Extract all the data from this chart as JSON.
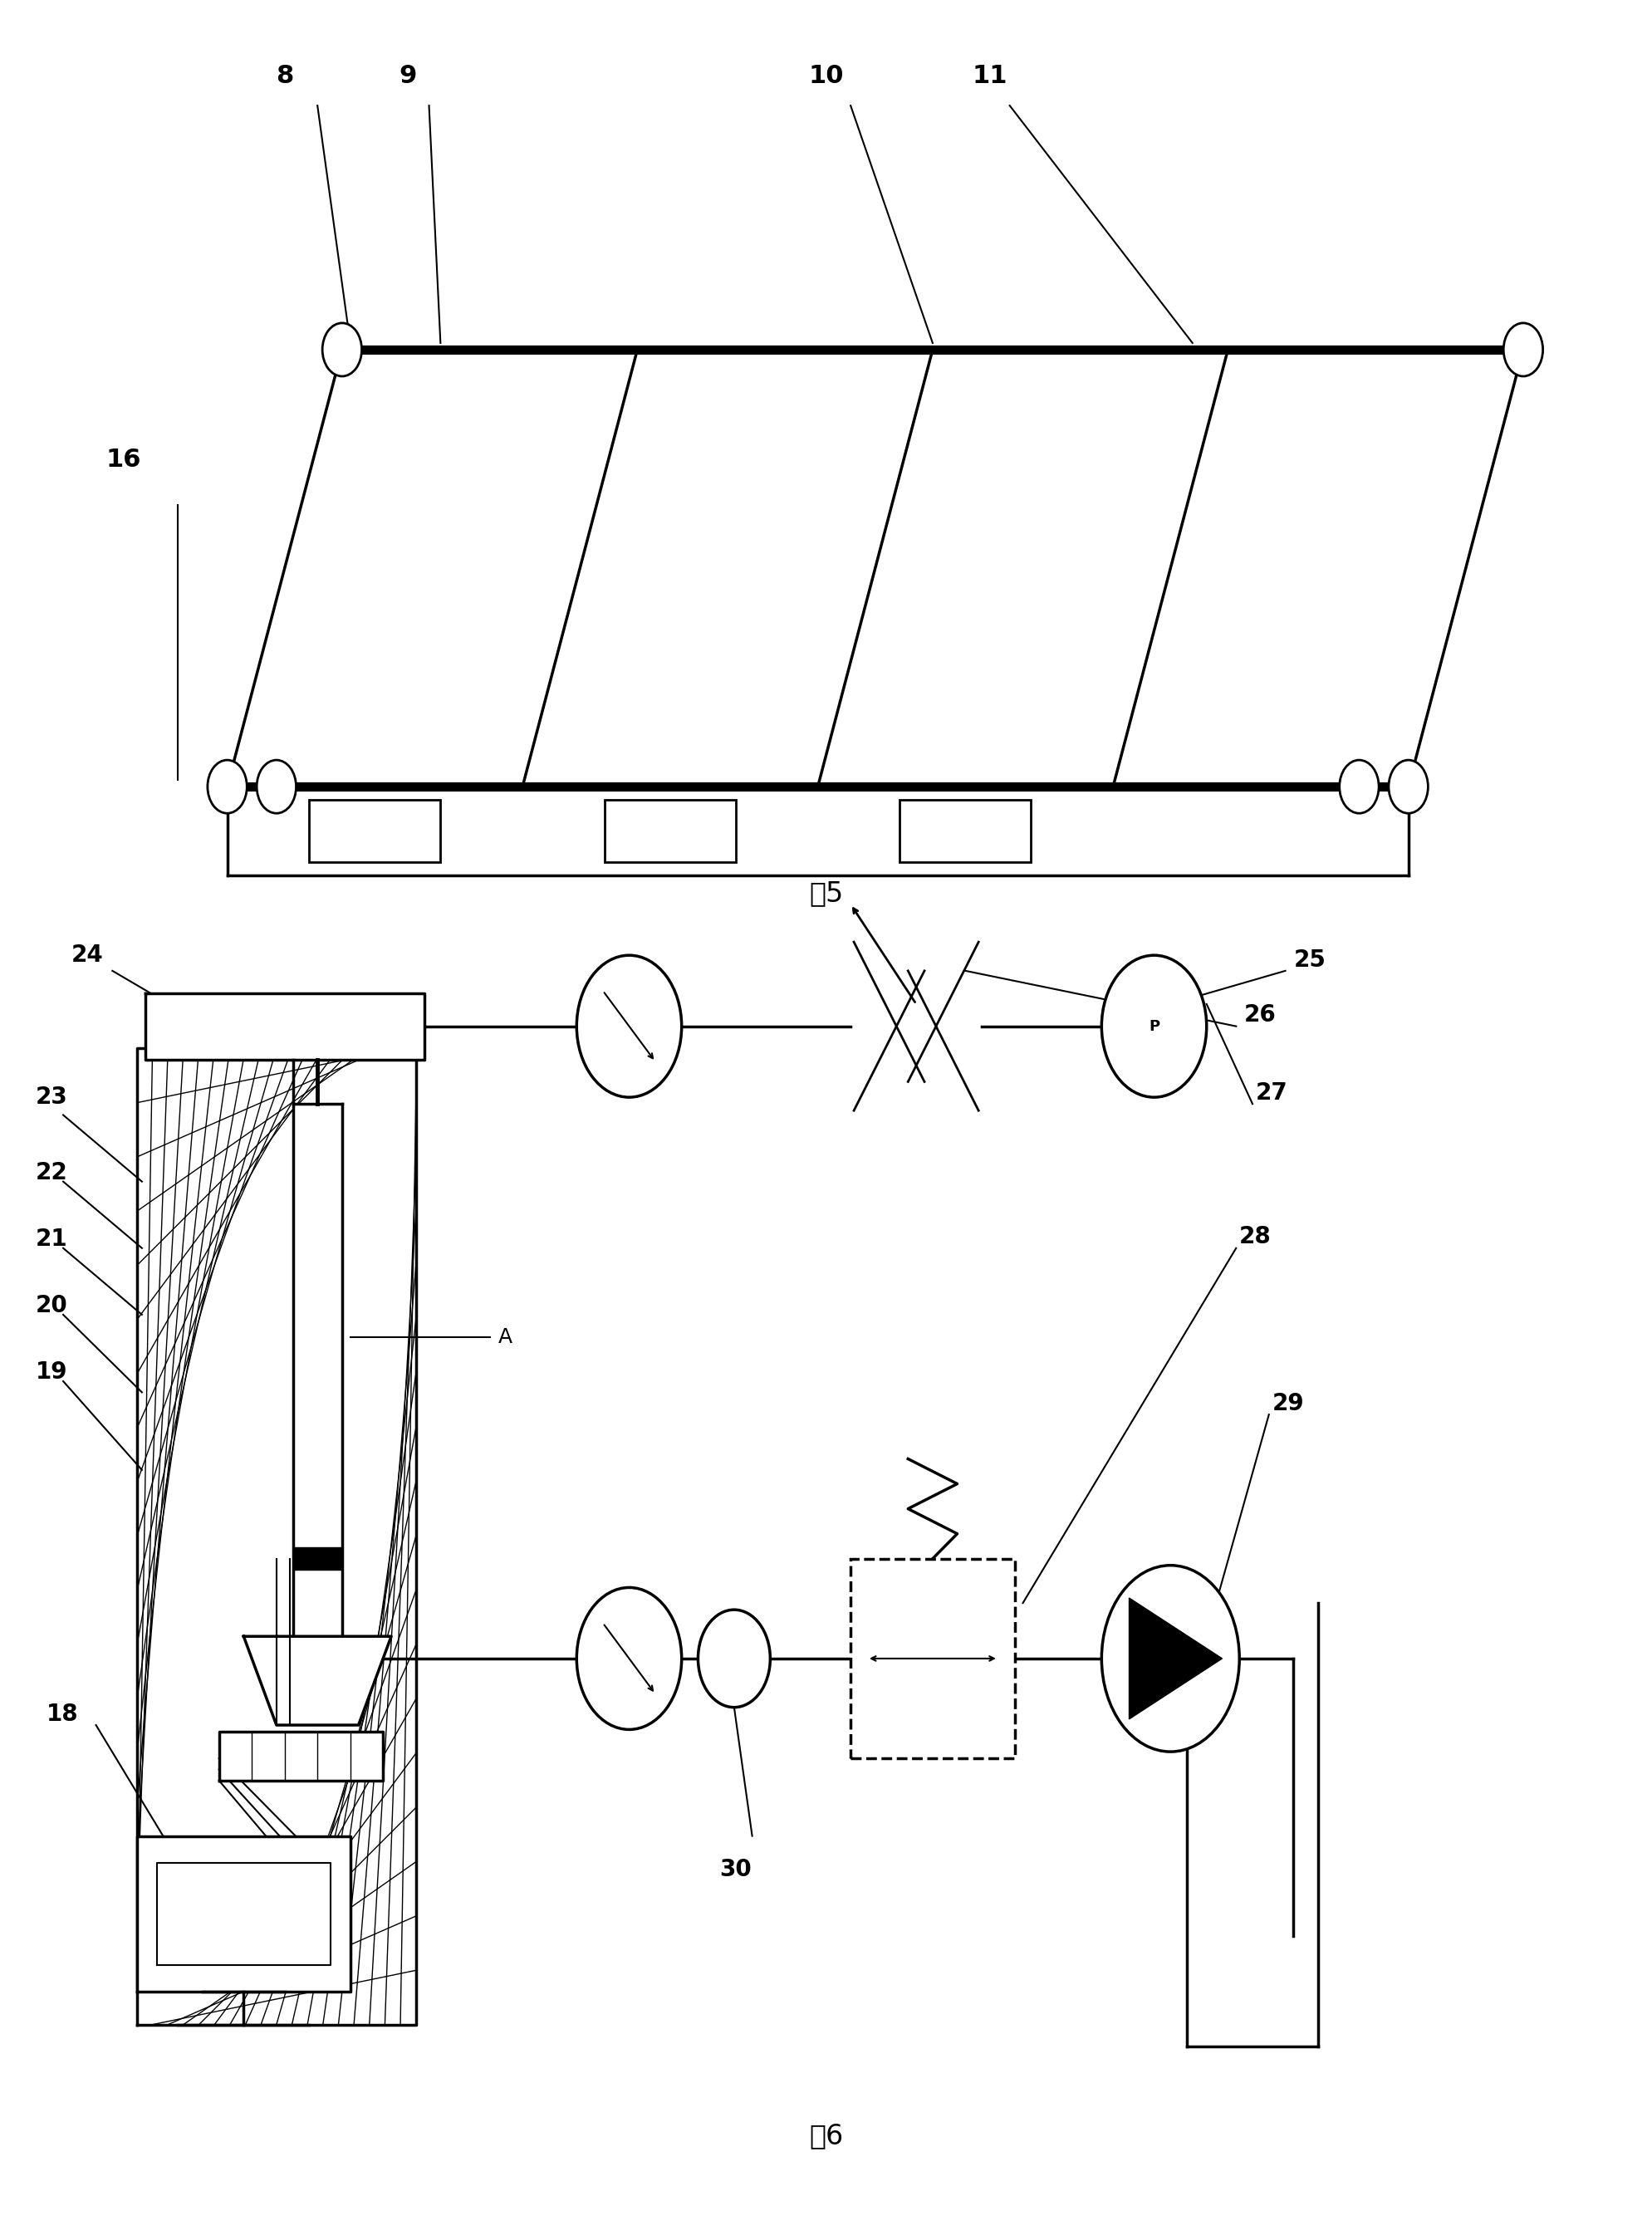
{
  "bg_color": "#ffffff",
  "line_color": "#000000",
  "fig5_caption": "图5",
  "fig6_caption": "图6",
  "lw_thick": 5,
  "lw_mid": 2.5,
  "lw_thin": 1.5,
  "bolt_r": 0.012,
  "label_fs": 20,
  "caption_fs": 22
}
